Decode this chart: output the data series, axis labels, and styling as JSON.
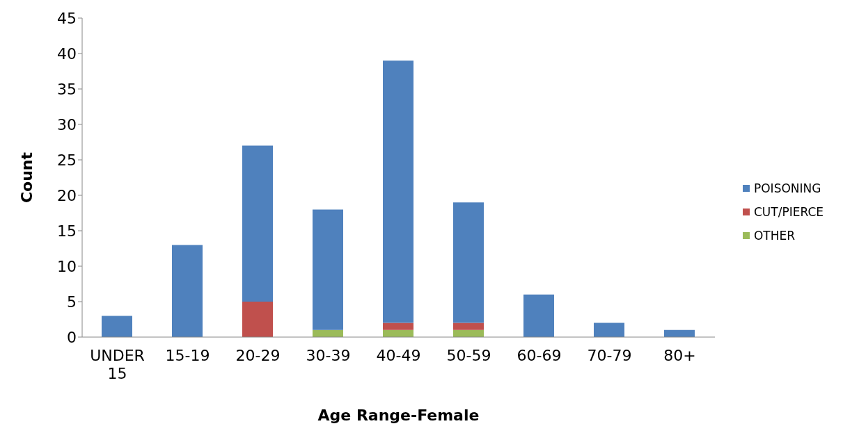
{
  "chart_data": {
    "type": "bar",
    "stacked": true,
    "xlabel": "Age Range-Female",
    "ylabel": "Count",
    "categories": [
      "UNDER 15",
      "15-19",
      "20-29",
      "30-39",
      "40-49",
      "50-59",
      "60-69",
      "70-79",
      "80+"
    ],
    "series": [
      {
        "name": "OTHER",
        "color": "#9bbb59",
        "values": [
          0,
          0,
          0,
          1,
          1,
          1,
          0,
          0,
          0
        ]
      },
      {
        "name": "CUT/PIERCE",
        "color": "#c0504d",
        "values": [
          0,
          0,
          5,
          0,
          1,
          1,
          0,
          0,
          0
        ]
      },
      {
        "name": "POISONING",
        "color": "#4f81bd",
        "values": [
          3,
          13,
          22,
          17,
          37,
          17,
          6,
          2,
          1
        ]
      }
    ],
    "ylim": [
      0,
      45
    ],
    "yticks": [
      0,
      5,
      10,
      15,
      20,
      25,
      30,
      35,
      40,
      45
    ],
    "grid": false,
    "legend": "right"
  }
}
